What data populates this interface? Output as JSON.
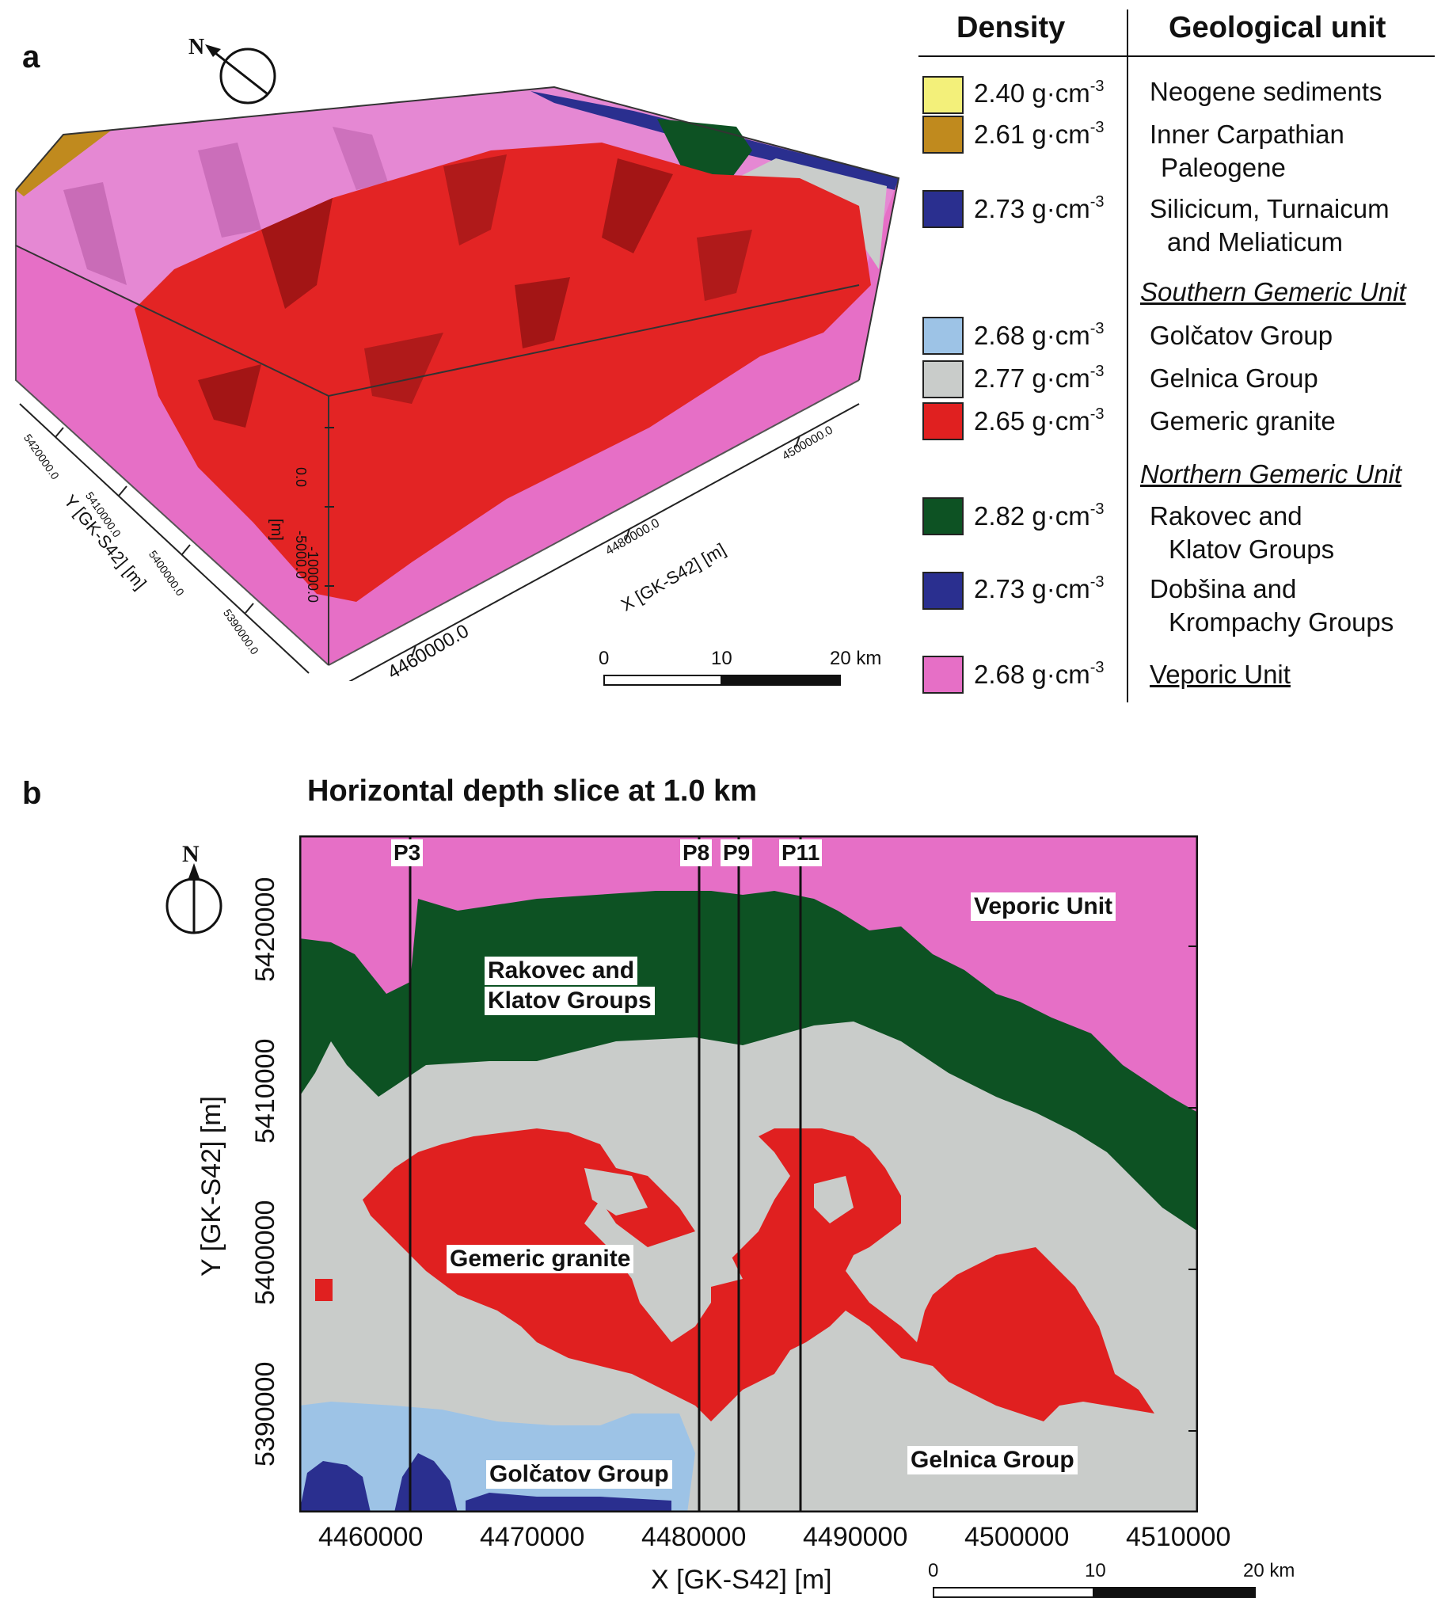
{
  "panel_a": {
    "letter": "a",
    "north_letter": "N",
    "axis_y_title": "Y [GK-S42] [m]",
    "axis_y_ticks": [
      "5420000.0",
      "5410000.0",
      "5400000.0",
      "5390000.0"
    ],
    "axis_x_title": "X [GK-S42] [m]",
    "axis_x_ticks": [
      "4460000.0",
      "4480000.0",
      "4500000.0"
    ],
    "axis_z_title": "[m]",
    "axis_z_ticks": [
      "0.0",
      "-5000.0",
      "-10000.0"
    ],
    "scale": {
      "zero": "0",
      "mid": "10",
      "end": "20 km"
    }
  },
  "legend": {
    "density_header": "Density",
    "unit_header": "Geological unit",
    "unit_suffix": "g·cm",
    "unit_exp": "-3",
    "items": [
      {
        "density": "2.40",
        "unit": "Neogene sediments",
        "unit2": "",
        "color": "#f3f07a"
      },
      {
        "density": "2.61",
        "unit": "Inner Carpathian",
        "unit2": "Paleogene",
        "color": "#c08a1e"
      },
      {
        "density": "2.73",
        "unit": "Silicicum, Turnaicum",
        "unit2": "and Meliaticum",
        "color": "#2a2f8f"
      },
      {
        "density": "2.68",
        "unit": "Golčatov Group",
        "unit2": "",
        "color": "#9dc3e6"
      },
      {
        "density": "2.77",
        "unit": "Gelnica Group",
        "unit2": "",
        "color": "#c9ccca"
      },
      {
        "density": "2.65",
        "unit": "Gemeric granite",
        "unit2": "",
        "color": "#e02020"
      },
      {
        "density": "2.82",
        "unit": "Rakovec and",
        "unit2": "Klatov Groups",
        "color": "#0d5223"
      },
      {
        "density": "2.73",
        "unit": "Dobšina and",
        "unit2": "Krompachy Groups",
        "color": "#2a2f8f"
      },
      {
        "density": "2.68",
        "unit": "Veporic Unit",
        "unit2": "",
        "color": "#e66fc6"
      }
    ],
    "section_southern": "Southern Gemeric Unit",
    "section_northern": "Northern Gemeric Unit"
  },
  "panel_b": {
    "letter": "b",
    "title": "Horizontal depth slice at 1.0 km",
    "north_letter": "N",
    "x_axis_title": "X [GK-S42] [m]",
    "x_ticks": [
      "4460000",
      "4470000",
      "4480000",
      "4490000",
      "4500000",
      "4510000"
    ],
    "y_axis_title": "Y [GK-S42] [m]",
    "y_ticks": [
      "5420000",
      "5410000",
      "5400000",
      "5390000"
    ],
    "profiles": [
      "P3",
      "P8",
      "P9",
      "P11"
    ],
    "labels": {
      "veporic": "Veporic Unit",
      "rakovec_1": "Rakovec and",
      "rakovec_2": "Klatov Groups",
      "granite": "Gemeric granite",
      "golcatov": "Golčatov Group",
      "gelnica": "Gelnica Group"
    },
    "scale": {
      "zero": "0",
      "mid": "10",
      "end": "20 km"
    }
  }
}
